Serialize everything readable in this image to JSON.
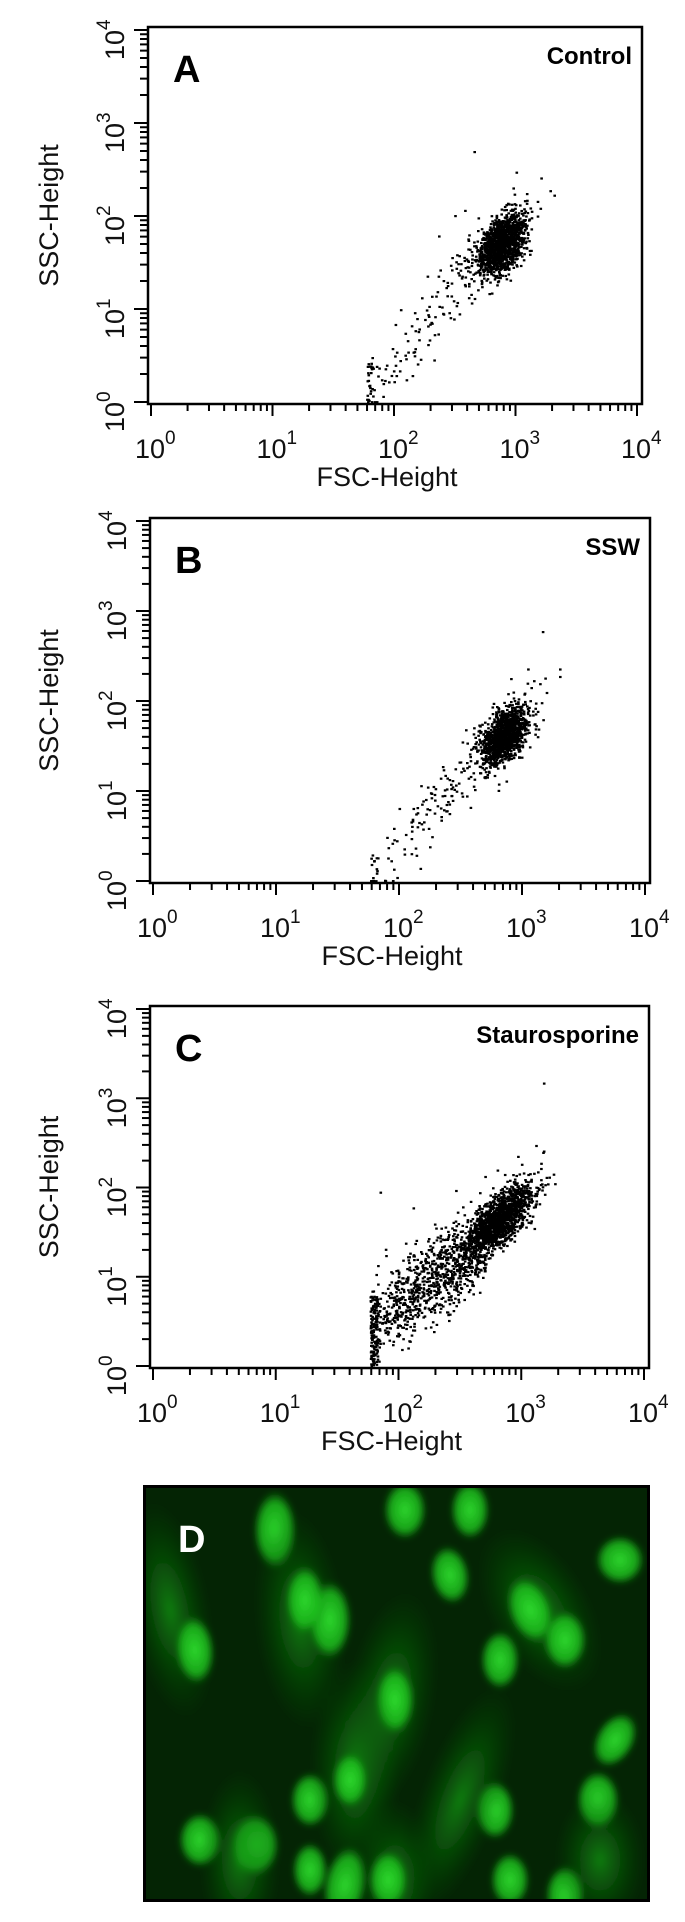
{
  "chart_data": [
    {
      "type": "scatter",
      "panel_label": "A",
      "title": "Control",
      "xlabel": "FSC-Height",
      "ylabel": "SSC-Height",
      "xscale": "log",
      "yscale": "log",
      "xlim": [
        1,
        10000
      ],
      "ylim": [
        1,
        10000
      ],
      "xticks": [
        {
          "base": "10",
          "exp": "0"
        },
        {
          "base": "10",
          "exp": "1"
        },
        {
          "base": "10",
          "exp": "2"
        },
        {
          "base": "10",
          "exp": "3"
        },
        {
          "base": "10",
          "exp": "4"
        }
      ],
      "yticks": [
        {
          "base": "10",
          "exp": "0"
        },
        {
          "base": "10",
          "exp": "1"
        },
        {
          "base": "10",
          "exp": "2"
        },
        {
          "base": "10",
          "exp": "3"
        },
        {
          "base": "10",
          "exp": "4"
        }
      ],
      "populations": [
        {
          "name": "main-cluster",
          "center": [
            750,
            50
          ],
          "log_sd": [
            0.1,
            0.17
          ],
          "correlation": 0.5,
          "n": 1400
        },
        {
          "name": "debris-tail",
          "fsc_range": [
            58,
            500
          ],
          "ssc_at_start": 1,
          "ssc_at_end": 40,
          "log_noise": 0.22,
          "n": 130
        },
        {
          "name": "edge-stack",
          "fsc": 58,
          "ssc_range": [
            1,
            3
          ],
          "n": 25
        }
      ],
      "outliers": [
        [
          450,
          500
        ],
        [
          1000,
          300
        ],
        [
          1600,
          260
        ],
        [
          1900,
          190
        ],
        [
          2050,
          170
        ]
      ]
    },
    {
      "type": "scatter",
      "panel_label": "B",
      "title": "SSW",
      "xlabel": "FSC-Height",
      "ylabel": "SSC-Height",
      "xscale": "log",
      "yscale": "log",
      "xlim": [
        1,
        10000
      ],
      "ylim": [
        1,
        10000
      ],
      "xticks": [
        {
          "base": "10",
          "exp": "0"
        },
        {
          "base": "10",
          "exp": "1"
        },
        {
          "base": "10",
          "exp": "2"
        },
        {
          "base": "10",
          "exp": "3"
        },
        {
          "base": "10",
          "exp": "4"
        }
      ],
      "yticks": [
        {
          "base": "10",
          "exp": "0"
        },
        {
          "base": "10",
          "exp": "1"
        },
        {
          "base": "10",
          "exp": "2"
        },
        {
          "base": "10",
          "exp": "3"
        },
        {
          "base": "10",
          "exp": "4"
        }
      ],
      "populations": [
        {
          "name": "main-cluster",
          "center": [
            700,
            42
          ],
          "log_sd": [
            0.1,
            0.17
          ],
          "correlation": 0.5,
          "n": 1300
        },
        {
          "name": "debris-tail",
          "fsc_range": [
            58,
            450
          ],
          "ssc_at_start": 1,
          "ssc_at_end": 25,
          "log_noise": 0.22,
          "n": 120
        },
        {
          "name": "edge-stack",
          "fsc": 58,
          "ssc_range": [
            1,
            2
          ],
          "n": 10
        }
      ],
      "outliers": [
        [
          1450,
          600
        ],
        [
          1100,
          230
        ],
        [
          2000,
          230
        ],
        [
          2000,
          190
        ],
        [
          800,
          180
        ]
      ]
    },
    {
      "type": "scatter",
      "panel_label": "C",
      "title": "Staurosporine",
      "xlabel": "FSC-Height",
      "ylabel": "SSC-Height",
      "xscale": "log",
      "yscale": "log",
      "xlim": [
        1,
        10000
      ],
      "ylim": [
        1,
        10000
      ],
      "xticks": [
        {
          "base": "10",
          "exp": "0"
        },
        {
          "base": "10",
          "exp": "1"
        },
        {
          "base": "10",
          "exp": "2"
        },
        {
          "base": "10",
          "exp": "3"
        },
        {
          "base": "10",
          "exp": "4"
        }
      ],
      "yticks": [
        {
          "base": "10",
          "exp": "0"
        },
        {
          "base": "10",
          "exp": "1"
        },
        {
          "base": "10",
          "exp": "2"
        },
        {
          "base": "10",
          "exp": "3"
        },
        {
          "base": "10",
          "exp": "4"
        }
      ],
      "populations": [
        {
          "name": "main-cluster",
          "center": [
            650,
            45
          ],
          "log_sd": [
            0.14,
            0.2
          ],
          "correlation": 0.7,
          "n": 1500
        },
        {
          "name": "apoptotic-band",
          "fsc_range": [
            58,
            500
          ],
          "ssc_at_start": 3,
          "ssc_at_end": 25,
          "log_noise": 0.25,
          "n": 900
        },
        {
          "name": "edge-stack",
          "fsc": 58,
          "ssc_range": [
            1,
            6
          ],
          "n": 120
        }
      ],
      "outliers": [
        [
          1500,
          1500
        ],
        [
          1300,
          300
        ],
        [
          1500,
          260
        ],
        [
          70,
          90
        ],
        [
          130,
          60
        ]
      ]
    }
  ],
  "micrograph": {
    "panel_label": "D",
    "stain_color": "#1ec81e",
    "background_color": "#021402"
  }
}
